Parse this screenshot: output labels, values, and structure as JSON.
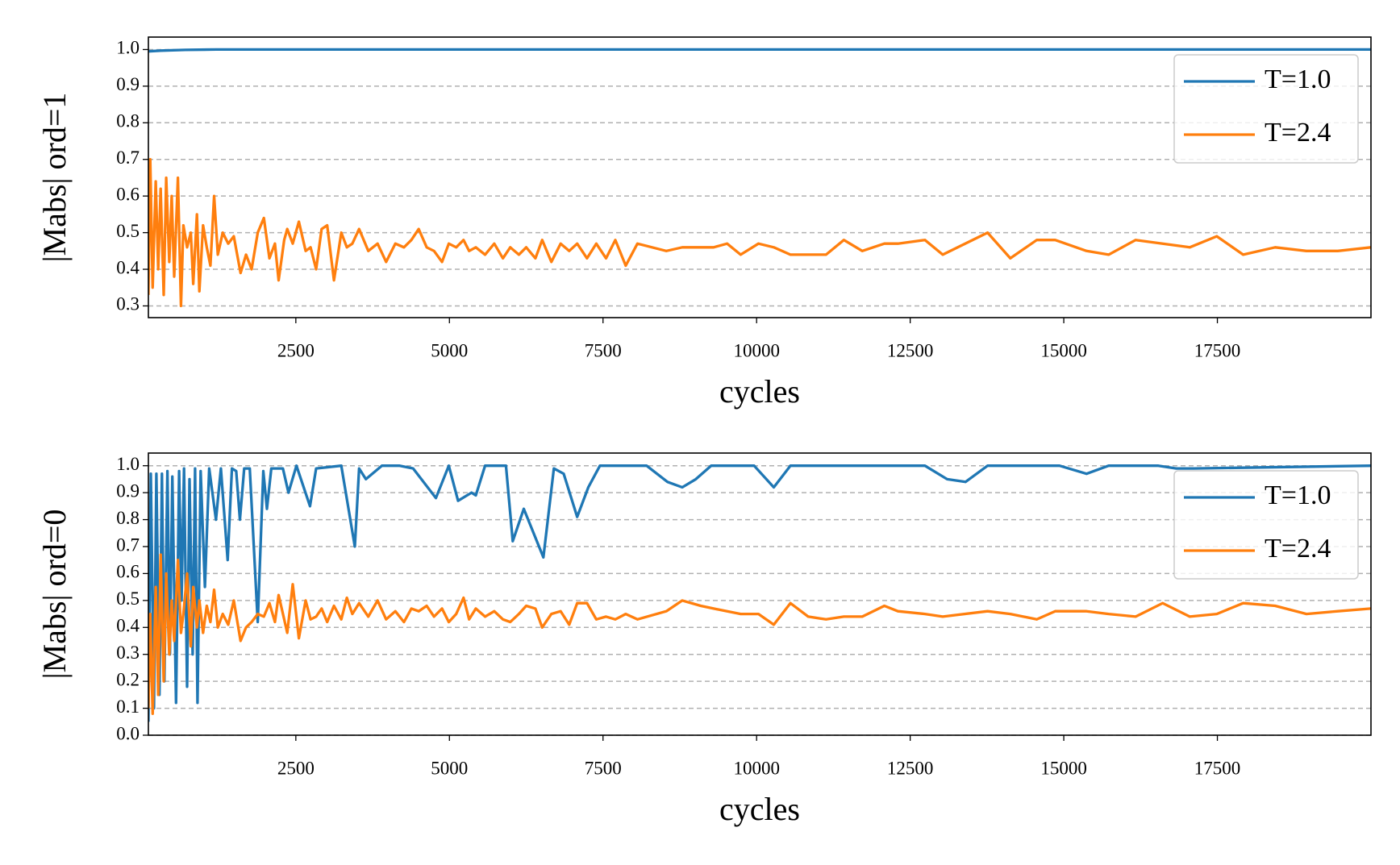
{
  "chart_data": [
    {
      "type": "line",
      "xlabel": "cycles",
      "ylabel": "|Mabs| ord=1",
      "xlim": [
        100,
        20000
      ],
      "ylim": [
        0.268,
        1.034
      ],
      "xticks": [
        2500,
        5000,
        7500,
        10000,
        12500,
        15000,
        17500
      ],
      "yticks": [
        0.3,
        0.4,
        0.5,
        0.6,
        0.7,
        0.8,
        0.9,
        {
          "value": 1,
          "label": "1.0"
        }
      ],
      "grid": "y",
      "legend": "upper right",
      "series": [
        {
          "name": "T=1.0",
          "color": "#1f77b4",
          "x": [
            100,
            300,
            700,
            1200,
            20000
          ],
          "values": [
            0.995,
            0.997,
            0.999,
            1.0,
            1.0
          ]
        },
        {
          "name": "T=2.4",
          "color": "#ff7f0e",
          "x": [
            100,
            130,
            170,
            220,
            260,
            300,
            350,
            390,
            440,
            480,
            520,
            580,
            630,
            670,
            730,
            790,
            830,
            890,
            930,
            990,
            1050,
            1110,
            1170,
            1230,
            1310,
            1400,
            1490,
            1600,
            1690,
            1780,
            1880,
            1980,
            2070,
            2160,
            2220,
            2310,
            2360,
            2450,
            2550,
            2660,
            2740,
            2830,
            2920,
            3010,
            3120,
            3240,
            3330,
            3420,
            3530,
            3680,
            3830,
            3970,
            4120,
            4260,
            4380,
            4500,
            4630,
            4750,
            4880,
            4990,
            5110,
            5230,
            5320,
            5430,
            5580,
            5730,
            5870,
            5990,
            6130,
            6250,
            6400,
            6510,
            6660,
            6810,
            6950,
            7080,
            7240,
            7390,
            7550,
            7700,
            7870,
            8060,
            8530,
            8790,
            9090,
            9300,
            9520,
            9740,
            10030,
            10280,
            10550,
            10840,
            11130,
            11420,
            11720,
            12080,
            12300,
            12740,
            13030,
            13760,
            14130,
            14560,
            14860,
            15370,
            15730,
            16170,
            16610,
            17050,
            17490,
            17920,
            18440,
            18950,
            19460,
            20000
          ],
          "values": [
            0.33,
            0.7,
            0.35,
            0.64,
            0.4,
            0.62,
            0.33,
            0.65,
            0.42,
            0.6,
            0.38,
            0.65,
            0.3,
            0.52,
            0.46,
            0.5,
            0.36,
            0.55,
            0.34,
            0.52,
            0.46,
            0.41,
            0.6,
            0.44,
            0.5,
            0.47,
            0.49,
            0.39,
            0.44,
            0.4,
            0.5,
            0.54,
            0.43,
            0.47,
            0.37,
            0.48,
            0.51,
            0.47,
            0.53,
            0.45,
            0.46,
            0.4,
            0.51,
            0.52,
            0.37,
            0.5,
            0.46,
            0.47,
            0.51,
            0.45,
            0.47,
            0.42,
            0.47,
            0.46,
            0.48,
            0.51,
            0.46,
            0.45,
            0.42,
            0.47,
            0.46,
            0.48,
            0.45,
            0.46,
            0.44,
            0.47,
            0.43,
            0.46,
            0.44,
            0.46,
            0.43,
            0.48,
            0.42,
            0.47,
            0.45,
            0.47,
            0.43,
            0.47,
            0.43,
            0.48,
            0.41,
            0.47,
            0.45,
            0.46,
            0.46,
            0.46,
            0.47,
            0.44,
            0.47,
            0.46,
            0.44,
            0.44,
            0.44,
            0.48,
            0.45,
            0.47,
            0.47,
            0.48,
            0.44,
            0.5,
            0.43,
            0.48,
            0.48,
            0.45,
            0.44,
            0.48,
            0.47,
            0.46,
            0.49,
            0.44,
            0.46,
            0.45,
            0.45,
            0.46
          ]
        }
      ]
    },
    {
      "type": "line",
      "xlabel": "cycles",
      "ylabel": "|Mabs| ord=0",
      "xlim": [
        100,
        20000
      ],
      "ylim": [
        0,
        1.047
      ],
      "xticks": [
        2500,
        5000,
        7500,
        10000,
        12500,
        15000,
        17500
      ],
      "yticks": [
        {
          "value": 0,
          "label": "0.0"
        },
        0.1,
        0.2,
        0.3,
        0.4,
        0.5,
        0.6,
        0.7,
        0.8,
        0.9,
        {
          "value": 1,
          "label": "1.0"
        }
      ],
      "grid": "y",
      "legend": "upper right",
      "series": [
        {
          "name": "T=1.0",
          "color": "#1f77b4",
          "x": [
            100,
            140,
            190,
            230,
            280,
            320,
            360,
            410,
            450,
            490,
            550,
            600,
            640,
            680,
            730,
            770,
            820,
            860,
            900,
            950,
            1020,
            1090,
            1200,
            1280,
            1390,
            1460,
            1530,
            1590,
            1660,
            1750,
            1880,
            1970,
            2030,
            2100,
            2290,
            2380,
            2510,
            2730,
            2830,
            3240,
            3460,
            3530,
            3640,
            3900,
            4190,
            4410,
            4780,
            4990,
            5140,
            5360,
            5430,
            5580,
            5920,
            6030,
            6210,
            6530,
            6700,
            6860,
            7080,
            7260,
            7450,
            8210,
            8550,
            8790,
            9010,
            9260,
            9960,
            10280,
            10550,
            12740,
            13100,
            13400,
            13760,
            14930,
            15370,
            15730,
            16540,
            16830,
            17120,
            20000
          ],
          "values": [
            0.05,
            0.97,
            0.1,
            0.97,
            0.15,
            0.97,
            0.2,
            0.98,
            0.3,
            0.96,
            0.12,
            0.98,
            0.5,
            0.99,
            0.18,
            0.95,
            0.3,
            0.99,
            0.12,
            0.98,
            0.55,
            0.99,
            0.8,
            0.99,
            0.65,
            0.99,
            0.98,
            0.8,
            0.99,
            0.99,
            0.42,
            0.98,
            0.84,
            0.99,
            0.99,
            0.9,
            1.0,
            0.85,
            0.99,
            1.0,
            0.7,
            0.99,
            0.95,
            1.0,
            1.0,
            0.99,
            0.88,
            1.0,
            0.87,
            0.9,
            0.89,
            1.0,
            1.0,
            0.72,
            0.84,
            0.66,
            0.99,
            0.97,
            0.81,
            0.92,
            1.0,
            1.0,
            0.94,
            0.92,
            0.95,
            1.0,
            1.0,
            0.92,
            1.0,
            1.0,
            0.95,
            0.94,
            1.0,
            1.0,
            0.97,
            1.0,
            1.0,
            0.99,
            0.99,
            1.0
          ]
        },
        {
          "name": "T=2.4",
          "color": "#ff7f0e",
          "x": [
            100,
            130,
            170,
            220,
            260,
            300,
            350,
            390,
            440,
            480,
            520,
            580,
            630,
            670,
            730,
            790,
            830,
            890,
            930,
            990,
            1050,
            1110,
            1170,
            1230,
            1310,
            1400,
            1490,
            1600,
            1690,
            1780,
            1880,
            1980,
            2070,
            2160,
            2220,
            2310,
            2360,
            2450,
            2550,
            2660,
            2740,
            2830,
            2920,
            3010,
            3120,
            3240,
            3330,
            3420,
            3530,
            3680,
            3830,
            3970,
            4120,
            4260,
            4380,
            4500,
            4630,
            4750,
            4880,
            4990,
            5110,
            5230,
            5320,
            5430,
            5580,
            5730,
            5870,
            5990,
            6130,
            6250,
            6400,
            6510,
            6660,
            6810,
            6950,
            7080,
            7240,
            7390,
            7550,
            7700,
            7870,
            8060,
            8530,
            8790,
            9090,
            9300,
            9520,
            9740,
            10030,
            10280,
            10550,
            10840,
            11130,
            11420,
            11720,
            12080,
            12300,
            12740,
            13030,
            13760,
            14130,
            14560,
            14860,
            15370,
            15730,
            16170,
            16610,
            17050,
            17490,
            17920,
            18440,
            18950,
            19460,
            20000
          ],
          "values": [
            0.1,
            0.45,
            0.08,
            0.55,
            0.15,
            0.67,
            0.2,
            0.6,
            0.3,
            0.5,
            0.35,
            0.65,
            0.38,
            0.45,
            0.6,
            0.33,
            0.55,
            0.4,
            0.5,
            0.38,
            0.48,
            0.42,
            0.54,
            0.4,
            0.45,
            0.41,
            0.5,
            0.35,
            0.4,
            0.42,
            0.45,
            0.44,
            0.49,
            0.42,
            0.52,
            0.43,
            0.38,
            0.56,
            0.36,
            0.5,
            0.43,
            0.44,
            0.47,
            0.42,
            0.48,
            0.43,
            0.51,
            0.45,
            0.49,
            0.44,
            0.5,
            0.43,
            0.46,
            0.42,
            0.47,
            0.46,
            0.48,
            0.44,
            0.47,
            0.42,
            0.45,
            0.51,
            0.43,
            0.47,
            0.44,
            0.46,
            0.43,
            0.42,
            0.45,
            0.48,
            0.47,
            0.4,
            0.45,
            0.46,
            0.41,
            0.49,
            0.49,
            0.43,
            0.44,
            0.43,
            0.45,
            0.43,
            0.46,
            0.5,
            0.48,
            0.47,
            0.46,
            0.45,
            0.45,
            0.41,
            0.49,
            0.44,
            0.43,
            0.44,
            0.44,
            0.48,
            0.46,
            0.45,
            0.44,
            0.46,
            0.45,
            0.43,
            0.46,
            0.46,
            0.45,
            0.44,
            0.49,
            0.44,
            0.45,
            0.49,
            0.48,
            0.45,
            0.46,
            0.47
          ]
        }
      ]
    }
  ]
}
